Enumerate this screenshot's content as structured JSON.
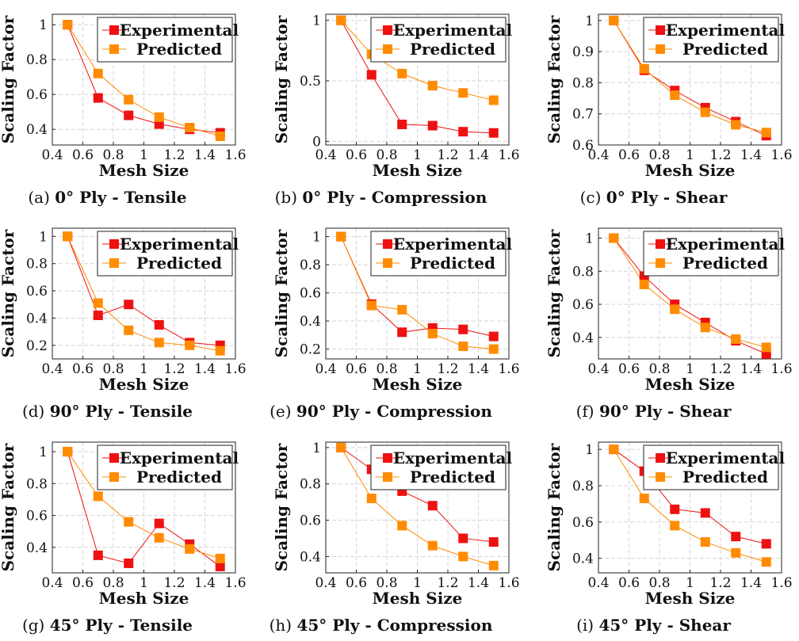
{
  "colors": {
    "experimental": "#ee1111",
    "predicted": "#ff8c00",
    "grid": "#d4d4d4"
  },
  "chart_data": [
    {
      "type": "line",
      "caption_label": "(a)",
      "caption_title": "0° Ply - Tensile",
      "xlabel": "Mesh Size",
      "ylabel": "Scaling Factor",
      "xlim": [
        0.4,
        1.6
      ],
      "ylim": [
        0.31,
        1.06
      ],
      "xticks": [
        "0.4",
        "0.6",
        "0.8",
        "1",
        "1.2",
        "1.4",
        "1.6"
      ],
      "yticks": [
        "0.4",
        "0.6",
        "0.8",
        "1"
      ],
      "legend": "top-right",
      "grid": true,
      "x": [
        0.5,
        0.7,
        0.9,
        1.1,
        1.3,
        1.5
      ],
      "series": [
        {
          "name": "Experimental",
          "values": [
            1.0,
            0.58,
            0.48,
            0.43,
            0.4,
            0.38
          ]
        },
        {
          "name": "Predicted",
          "values": [
            1.0,
            0.72,
            0.57,
            0.47,
            0.41,
            0.36
          ]
        }
      ]
    },
    {
      "type": "line",
      "caption_label": "(b)",
      "caption_title": "0° Ply - Compression",
      "xlabel": "Mesh Size",
      "ylabel": "Scaling Factor",
      "xlim": [
        0.4,
        1.6
      ],
      "ylim": [
        -0.03,
        1.05
      ],
      "xticks": [
        "0.4",
        "0.6",
        "0.8",
        "1",
        "1.2",
        "1.4",
        "1.6"
      ],
      "yticks": [
        "0",
        "0.5",
        "1"
      ],
      "legend": "top-right",
      "grid": true,
      "x": [
        0.5,
        0.7,
        0.9,
        1.1,
        1.3,
        1.5
      ],
      "series": [
        {
          "name": "Experimental",
          "values": [
            1.0,
            0.55,
            0.14,
            0.13,
            0.08,
            0.07
          ]
        },
        {
          "name": "Predicted",
          "values": [
            1.0,
            0.72,
            0.56,
            0.46,
            0.4,
            0.34
          ]
        }
      ]
    },
    {
      "type": "line",
      "caption_label": "(c)",
      "caption_title": "0° Ply - Shear",
      "xlabel": "Mesh Size",
      "ylabel": "Scaling Factor",
      "xlim": [
        0.4,
        1.6
      ],
      "ylim": [
        0.6,
        1.02
      ],
      "xticks": [
        "0.4",
        "0.6",
        "0.8",
        "1",
        "1.2",
        "1.4",
        "1.6"
      ],
      "yticks": [
        "0.6",
        "0.7",
        "0.8",
        "0.9",
        "1"
      ],
      "legend": "top-right",
      "grid": true,
      "x": [
        0.5,
        0.7,
        0.9,
        1.1,
        1.3,
        1.5
      ],
      "series": [
        {
          "name": "Experimental",
          "values": [
            1.0,
            0.84,
            0.775,
            0.72,
            0.675,
            0.63
          ]
        },
        {
          "name": "Predicted",
          "values": [
            1.0,
            0.845,
            0.76,
            0.705,
            0.665,
            0.64
          ]
        }
      ]
    },
    {
      "type": "line",
      "caption_label": "(d)",
      "caption_title": "90° Ply - Tensile",
      "xlabel": "Mesh Size",
      "ylabel": "Scaling Factor",
      "xlim": [
        0.4,
        1.6
      ],
      "ylim": [
        0.1,
        1.06
      ],
      "xticks": [
        "0.4",
        "0.6",
        "0.8",
        "1",
        "1.2",
        "1.4",
        "1.6"
      ],
      "yticks": [
        "0.2",
        "0.4",
        "0.6",
        "0.8",
        "1"
      ],
      "legend": "top-right",
      "grid": true,
      "x": [
        0.5,
        0.7,
        0.9,
        1.1,
        1.3,
        1.5
      ],
      "series": [
        {
          "name": "Experimental",
          "values": [
            1.0,
            0.42,
            0.5,
            0.35,
            0.22,
            0.2
          ]
        },
        {
          "name": "Predicted",
          "values": [
            1.0,
            0.51,
            0.31,
            0.22,
            0.2,
            0.16
          ]
        }
      ]
    },
    {
      "type": "line",
      "caption_label": "(e)",
      "caption_title": "90° Ply - Compression",
      "xlabel": "Mesh Size",
      "ylabel": "Scaling Factor",
      "xlim": [
        0.4,
        1.6
      ],
      "ylim": [
        0.13,
        1.06
      ],
      "xticks": [
        "0.4",
        "0.6",
        "0.8",
        "1",
        "1.2",
        "1.4",
        "1.6"
      ],
      "yticks": [
        "0.2",
        "0.4",
        "0.6",
        "0.8",
        "1"
      ],
      "legend": "top-right",
      "grid": true,
      "x": [
        0.5,
        0.7,
        0.9,
        1.1,
        1.3,
        1.5
      ],
      "series": [
        {
          "name": "Experimental",
          "values": [
            1.0,
            0.52,
            0.32,
            0.35,
            0.34,
            0.29
          ]
        },
        {
          "name": "Predicted",
          "values": [
            1.0,
            0.51,
            0.48,
            0.31,
            0.22,
            0.2
          ]
        }
      ]
    },
    {
      "type": "line",
      "caption_label": "(f)",
      "caption_title": "90° Ply - Shear",
      "xlabel": "Mesh Size",
      "ylabel": "Scaling Factor",
      "xlim": [
        0.4,
        1.6
      ],
      "ylim": [
        0.27,
        1.06
      ],
      "xticks": [
        "0.4",
        "0.6",
        "0.8",
        "1",
        "1.2",
        "1.4",
        "1.6"
      ],
      "yticks": [
        "0.4",
        "0.6",
        "0.8",
        "1"
      ],
      "legend": "top-right",
      "grid": true,
      "x": [
        0.5,
        0.7,
        0.9,
        1.1,
        1.3,
        1.5
      ],
      "series": [
        {
          "name": "Experimental",
          "values": [
            1.0,
            0.77,
            0.6,
            0.49,
            0.38,
            0.3
          ]
        },
        {
          "name": "Predicted",
          "values": [
            1.0,
            0.72,
            0.57,
            0.46,
            0.39,
            0.34
          ]
        }
      ]
    },
    {
      "type": "line",
      "caption_label": "(g)",
      "caption_title": "45° Ply - Tensile",
      "xlabel": "Mesh Size",
      "ylabel": "Scaling Factor",
      "xlim": [
        0.4,
        1.6
      ],
      "ylim": [
        0.24,
        1.06
      ],
      "xticks": [
        "0.4",
        "0.6",
        "0.8",
        "1",
        "1.2",
        "1.4",
        "1.6"
      ],
      "yticks": [
        "0.4",
        "0.6",
        "0.8",
        "1"
      ],
      "legend": "top-right",
      "grid": true,
      "x": [
        0.5,
        0.7,
        0.9,
        1.1,
        1.3,
        1.5
      ],
      "series": [
        {
          "name": "Experimental",
          "values": [
            1.0,
            0.35,
            0.3,
            0.55,
            0.42,
            0.28
          ]
        },
        {
          "name": "Predicted",
          "values": [
            1.0,
            0.72,
            0.56,
            0.46,
            0.39,
            0.33
          ]
        }
      ]
    },
    {
      "type": "line",
      "caption_label": "(h)",
      "caption_title": "45° Ply - Compression",
      "xlabel": "Mesh Size",
      "ylabel": "Scaling Factor",
      "xlim": [
        0.4,
        1.6
      ],
      "ylim": [
        0.31,
        1.03
      ],
      "xticks": [
        "0.4",
        "0.6",
        "0.8",
        "1",
        "1.2",
        "1.4",
        "1.6"
      ],
      "yticks": [
        "0.4",
        "0.6",
        "0.8",
        "1"
      ],
      "legend": "top-right",
      "grid": true,
      "x": [
        0.5,
        0.7,
        0.9,
        1.1,
        1.3,
        1.5
      ],
      "series": [
        {
          "name": "Experimental",
          "values": [
            1.0,
            0.88,
            0.76,
            0.68,
            0.5,
            0.48
          ]
        },
        {
          "name": "Predicted",
          "values": [
            1.0,
            0.72,
            0.57,
            0.46,
            0.4,
            0.35
          ]
        }
      ]
    },
    {
      "type": "line",
      "caption_label": "(i)",
      "caption_title": "45° Ply - Shear",
      "xlabel": "Mesh Size",
      "ylabel": "Scaling Factor",
      "xlim": [
        0.4,
        1.6
      ],
      "ylim": [
        0.32,
        1.04
      ],
      "xticks": [
        "0.4",
        "0.6",
        "0.8",
        "1",
        "1.2",
        "1.4",
        "1.6"
      ],
      "yticks": [
        "0.4",
        "0.6",
        "0.8",
        "1"
      ],
      "legend": "top-right",
      "grid": true,
      "x": [
        0.5,
        0.7,
        0.9,
        1.1,
        1.3,
        1.5
      ],
      "series": [
        {
          "name": "Experimental",
          "values": [
            1.0,
            0.88,
            0.67,
            0.65,
            0.52,
            0.48
          ]
        },
        {
          "name": "Predicted",
          "values": [
            1.0,
            0.73,
            0.58,
            0.49,
            0.43,
            0.38
          ]
        }
      ]
    }
  ]
}
